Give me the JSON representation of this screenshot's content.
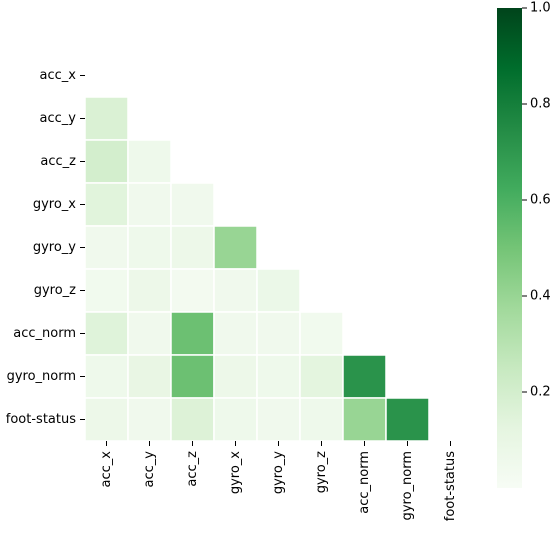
{
  "chart_data": {
    "type": "heatmap",
    "variables": [
      "acc_x",
      "acc_y",
      "acc_z",
      "gyro_x",
      "gyro_y",
      "gyro_z",
      "acc_norm",
      "gyro_norm",
      "foot-status"
    ],
    "mask": "upper-triangle-including-diagonal",
    "matrix": [
      [
        null,
        null,
        null,
        null,
        null,
        null,
        null,
        null,
        null
      ],
      [
        0.17,
        null,
        null,
        null,
        null,
        null,
        null,
        null,
        null
      ],
      [
        0.2,
        0.06,
        null,
        null,
        null,
        null,
        null,
        null,
        null
      ],
      [
        0.14,
        0.05,
        0.05,
        null,
        null,
        null,
        null,
        null,
        null
      ],
      [
        0.05,
        0.06,
        0.07,
        0.4,
        null,
        null,
        null,
        null,
        null
      ],
      [
        0.04,
        0.07,
        0.03,
        0.05,
        0.08,
        null,
        null,
        null,
        null
      ],
      [
        0.15,
        0.05,
        0.52,
        0.05,
        0.05,
        0.04,
        null,
        null,
        null
      ],
      [
        0.06,
        0.1,
        0.52,
        0.07,
        0.06,
        0.13,
        0.72,
        null,
        null
      ],
      [
        0.07,
        0.05,
        0.16,
        0.06,
        0.05,
        0.06,
        0.4,
        0.72,
        null
      ]
    ],
    "colormap": "Greens",
    "colorbar": {
      "min": 0.0,
      "max": 1.0,
      "ticks": [
        0.2,
        0.4,
        0.6,
        0.8,
        1.0
      ],
      "tick_labels": [
        "0.2",
        "0.4",
        "0.6",
        "0.8",
        "1.0"
      ]
    },
    "grid": false,
    "title": "",
    "xlabel": "",
    "ylabel": ""
  }
}
